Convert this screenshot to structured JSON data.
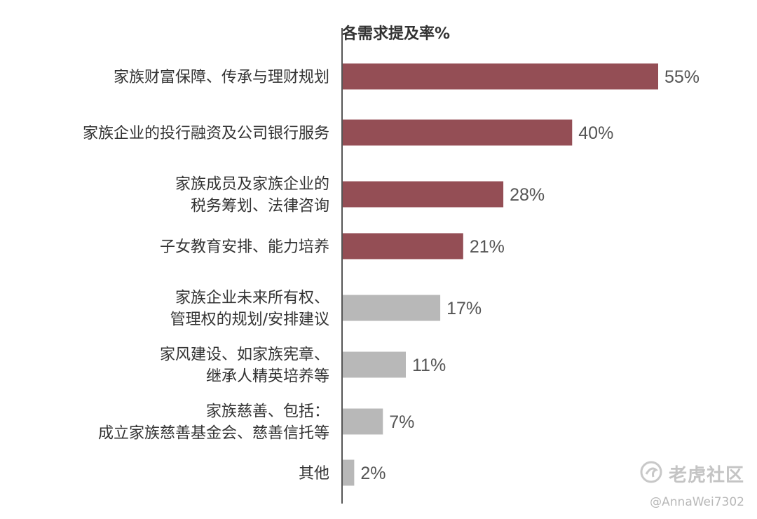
{
  "chart_data": {
    "type": "bar",
    "orientation": "horizontal",
    "title": "各需求提及率%",
    "categories": [
      [
        "家族财富保障、传承与理财规划"
      ],
      [
        "家族企业的投行融资及公司银行服务"
      ],
      [
        "家族成员及家族企业的",
        "税务筹划、法律咨询"
      ],
      [
        "子女教育安排、能力培养"
      ],
      [
        "家族企业未来所有权、",
        "管理权的规划/安排建议"
      ],
      [
        "家风建设、如家族宪章、",
        "继承人精英培养等"
      ],
      [
        "家族慈善、包括：",
        "成立家族慈善基金会、慈善信托等"
      ],
      [
        "其他"
      ]
    ],
    "values": [
      55,
      40,
      28,
      21,
      17,
      11,
      7,
      2
    ],
    "value_labels": [
      "55%",
      "40%",
      "28%",
      "21%",
      "17%",
      "11%",
      "7%",
      "2%"
    ],
    "highlight_count": 4,
    "colors": {
      "highlight": "#944e55",
      "normal": "#b8b8b8",
      "axis": "#555555"
    },
    "xlim": [
      0,
      55
    ],
    "grid": false,
    "legend": "none"
  },
  "watermark": {
    "logo_icon": "tiger-community-logo-icon",
    "text": "老虎社区",
    "user": "@AnnaWei7302"
  }
}
